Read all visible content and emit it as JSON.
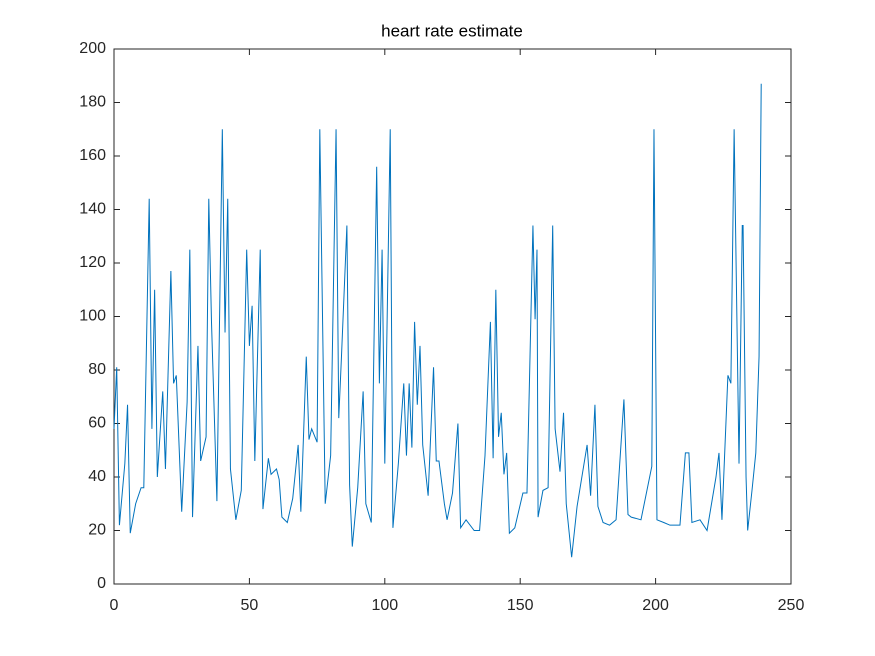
{
  "chart_data": {
    "type": "line",
    "title": "heart rate estimate",
    "x": [
      0,
      1,
      2,
      4,
      5,
      6,
      8,
      10,
      11,
      13,
      14,
      15,
      16,
      18,
      19,
      21,
      22,
      23,
      25,
      27,
      28,
      29,
      31,
      32,
      34,
      35,
      36,
      38,
      40,
      41,
      42,
      43,
      45,
      47,
      49,
      50,
      51,
      52,
      54,
      55,
      57,
      58,
      60,
      61,
      62,
      64,
      66,
      68,
      69,
      71,
      72,
      73,
      75,
      76,
      78,
      80,
      82,
      83,
      84,
      86,
      87,
      88,
      90,
      92,
      93,
      95,
      97,
      98,
      99,
      100,
      102,
      103,
      105,
      107,
      108,
      109,
      110,
      111,
      112,
      113,
      114,
      116,
      118,
      119,
      120,
      122,
      123,
      125,
      127,
      128,
      130,
      133,
      135,
      137,
      139,
      140,
      141,
      142,
      143,
      144,
      145,
      146,
      148,
      151,
      152.5,
      154.7,
      155.5,
      156.2,
      156.6,
      158.4,
      160.3,
      162,
      162.9,
      164.7,
      166,
      167,
      169,
      171,
      174.7,
      176,
      177.6,
      178.7,
      180.6,
      183,
      185.4,
      188.3,
      189.8,
      191,
      194.6,
      198.6,
      199.4,
      200.5,
      203,
      205.3,
      209,
      211,
      212.3,
      213.4,
      216.4,
      219,
      222.3,
      223.4,
      224.5,
      226.7,
      227.8,
      229,
      230.8,
      232,
      232.3,
      233.4,
      234,
      235.6,
      237,
      238.2,
      239
    ],
    "series": [
      {
        "color": "#0072bd",
        "values": [
          58,
          81,
          22,
          45,
          67,
          19,
          30,
          36,
          36,
          144,
          58,
          110,
          40,
          72,
          43,
          117,
          75,
          78,
          27,
          68,
          125,
          25,
          89,
          46,
          55,
          144,
          98,
          31,
          170,
          94,
          144,
          43,
          24,
          35,
          125,
          89,
          104,
          46,
          125,
          28,
          47,
          41,
          43,
          39,
          25,
          23,
          32,
          52,
          27,
          85,
          54,
          58,
          53,
          170,
          30,
          48,
          170,
          62,
          85,
          134,
          37,
          14,
          36,
          72,
          30,
          23,
          156,
          75,
          125,
          45,
          170,
          21,
          45,
          75,
          48,
          75,
          51,
          98,
          67,
          89,
          52,
          33,
          81,
          46,
          46,
          30,
          24,
          34,
          60,
          21,
          24,
          20,
          20,
          48,
          98,
          47,
          110,
          55,
          64,
          41,
          49,
          19,
          21,
          34,
          34,
          134,
          99,
          125,
          25,
          35,
          36,
          134,
          58,
          42,
          64,
          30,
          10,
          29,
          52,
          33,
          67,
          29,
          23,
          22,
          24,
          69,
          26,
          25,
          24,
          44,
          170,
          24,
          23,
          22,
          22,
          49,
          49,
          23,
          24,
          20,
          40,
          49,
          24,
          78,
          75,
          170,
          45,
          134,
          134,
          40,
          20,
          35,
          49,
          85,
          187
        ]
      }
    ],
    "xlim": [
      0,
      250
    ],
    "xticks": [
      0,
      50,
      100,
      150,
      200,
      250
    ],
    "ylim": [
      0,
      200
    ],
    "yticks": [
      0,
      20,
      40,
      60,
      80,
      100,
      120,
      140,
      160,
      180,
      200
    ]
  }
}
